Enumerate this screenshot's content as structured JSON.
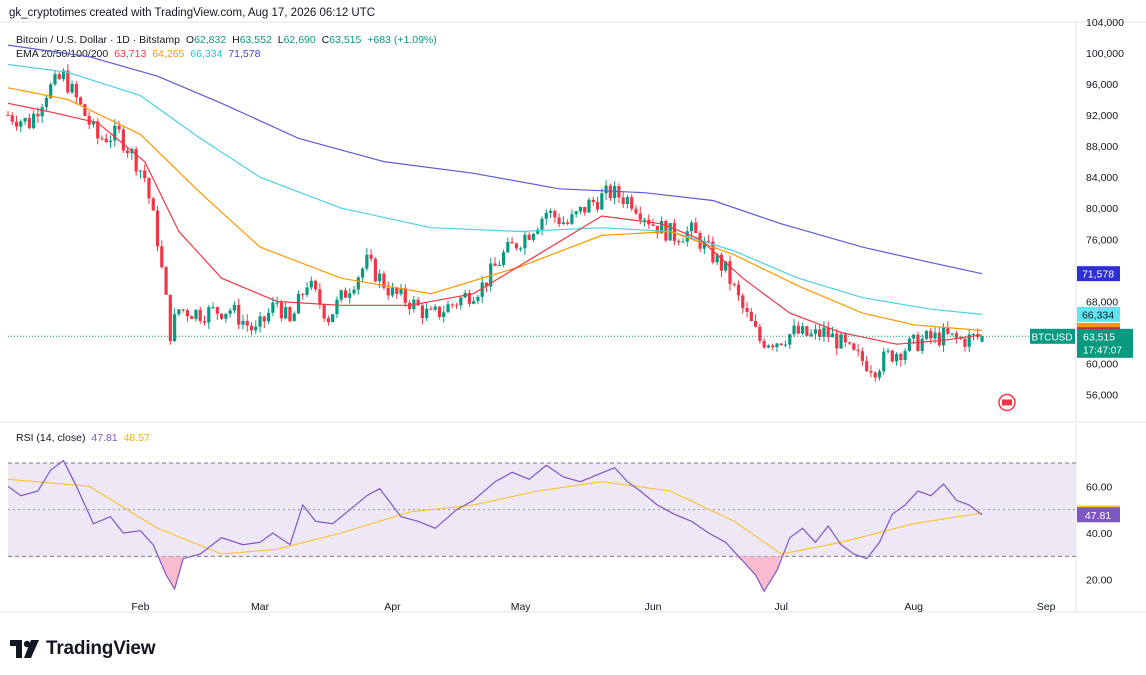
{
  "header": {
    "credit": "gk_cryptotimes created with TradingView.com, Aug 17, 2026 06:12 UTC"
  },
  "legend": {
    "symbol": "Bitcoin / U.S. Dollar · 1D · Bitstamp",
    "open_label": "O",
    "open": "62,832",
    "high_label": "H",
    "high": "63,552",
    "low_label": "L",
    "low": "62,690",
    "close_label": "C",
    "close": "63,515",
    "change": "+683 (+1.09%)",
    "ema_title": "EMA 20/50/100/200",
    "ema20": "63,713",
    "ema50": "64,265",
    "ema100": "66,334",
    "ema200": "71,578"
  },
  "rsi_legend": {
    "title": "RSI (14, close)",
    "rsi": "47.81",
    "ma": "48.57"
  },
  "price_tag": {
    "symbol": "BTCUSD",
    "price": "63,515",
    "countdown": "17:47:07"
  },
  "logo": {
    "text": "TradingView"
  },
  "colors": {
    "up": "#089981",
    "down": "#f23645",
    "ema20": "#f23645",
    "ema50": "#ff9800",
    "ema100": "#4dd0e1",
    "ema200": "#5b5bd6",
    "rsi": "#7e57c2",
    "rsi_ma": "#fbc02d",
    "rsi_band": "#ede7f6"
  },
  "chart_data": [
    {
      "type": "candlestick",
      "title": "Bitcoin / U.S. Dollar · 1D · Bitstamp",
      "ylim": [
        53000,
        105000
      ],
      "y_ticks": [
        "104,000",
        "100,000",
        "96,000",
        "92,000",
        "88,000",
        "84,000",
        "80,000",
        "76,000",
        "72,000",
        "68,000",
        "64,000",
        "60,000",
        "56,000"
      ],
      "x_ticks": [
        "Feb",
        "Mar",
        "Apr",
        "May",
        "Jun",
        "Jul",
        "Aug",
        "Sep"
      ],
      "date_range": [
        "2026-01-01",
        "2026-09-08"
      ],
      "last_candle": {
        "date": "2026-08-17",
        "open": 62832,
        "high": 63552,
        "low": 62690,
        "close": 63515
      },
      "close_path": [
        [
          "2026-01-01",
          92000
        ],
        [
          "2026-01-06",
          91000
        ],
        [
          "2026-01-10",
          95000
        ],
        [
          "2026-01-14",
          97000
        ],
        [
          "2026-01-19",
          92000
        ],
        [
          "2026-01-22",
          89000
        ],
        [
          "2026-01-27",
          89500
        ],
        [
          "2026-01-30",
          87000
        ],
        [
          "2026-02-02",
          84000
        ],
        [
          "2026-02-05",
          76000
        ],
        [
          "2026-02-08",
          64000
        ],
        [
          "2026-02-10",
          67000
        ],
        [
          "2026-02-15",
          66500
        ],
        [
          "2026-02-22",
          67000
        ],
        [
          "2026-02-28",
          64000
        ],
        [
          "2026-03-05",
          68000
        ],
        [
          "2026-03-08",
          65000
        ],
        [
          "2026-03-12",
          70500
        ],
        [
          "2026-03-17",
          66000
        ],
        [
          "2026-03-22",
          70000
        ],
        [
          "2026-03-26",
          73000
        ],
        [
          "2026-04-01",
          69000
        ],
        [
          "2026-04-05",
          68000
        ],
        [
          "2026-04-10",
          66000
        ],
        [
          "2026-04-16",
          68000
        ],
        [
          "2026-04-22",
          70000
        ],
        [
          "2026-04-27",
          74000
        ],
        [
          "2026-05-03",
          77000
        ],
        [
          "2026-05-07",
          79500
        ],
        [
          "2026-05-12",
          78000
        ],
        [
          "2026-05-17",
          80500
        ],
        [
          "2026-05-22",
          82000
        ],
        [
          "2026-05-27",
          81000
        ],
        [
          "2026-06-01",
          78000
        ],
        [
          "2026-06-06",
          76500
        ],
        [
          "2026-06-10",
          77000
        ],
        [
          "2026-06-14",
          74500
        ],
        [
          "2026-06-18",
          72000
        ],
        [
          "2026-06-22",
          67000
        ],
        [
          "2026-06-26",
          63000
        ],
        [
          "2026-06-30",
          63000
        ],
        [
          "2026-07-04",
          64000
        ],
        [
          "2026-07-08",
          63500
        ],
        [
          "2026-07-11",
          64000
        ],
        [
          "2026-07-14",
          63000
        ],
        [
          "2026-07-18",
          61000
        ],
        [
          "2026-07-23",
          59500
        ],
        [
          "2026-07-26",
          61000
        ],
        [
          "2026-07-30",
          62000
        ],
        [
          "2026-08-03",
          63000
        ],
        [
          "2026-08-08",
          63500
        ],
        [
          "2026-08-12",
          63000
        ],
        [
          "2026-08-17",
          63515
        ]
      ],
      "ema20_path": [
        [
          "2026-01-01",
          93500
        ],
        [
          "2026-01-10",
          92500
        ],
        [
          "2026-01-22",
          91000
        ],
        [
          "2026-02-02",
          86000
        ],
        [
          "2026-02-10",
          77000
        ],
        [
          "2026-02-20",
          71000
        ],
        [
          "2026-03-05",
          68000
        ],
        [
          "2026-03-20",
          67500
        ],
        [
          "2026-04-05",
          67500
        ],
        [
          "2026-04-20",
          69000
        ],
        [
          "2026-05-05",
          74000
        ],
        [
          "2026-05-20",
          79000
        ],
        [
          "2026-06-03",
          78000
        ],
        [
          "2026-06-12",
          76000
        ],
        [
          "2026-06-22",
          71000
        ],
        [
          "2026-07-03",
          66500
        ],
        [
          "2026-07-15",
          64000
        ],
        [
          "2026-07-28",
          62500
        ],
        [
          "2026-08-08",
          63000
        ],
        [
          "2026-08-17",
          63713
        ]
      ],
      "ema50_path": [
        [
          "2026-01-01",
          95500
        ],
        [
          "2026-01-15",
          94000
        ],
        [
          "2026-02-01",
          89500
        ],
        [
          "2026-02-15",
          82000
        ],
        [
          "2026-03-01",
          75000
        ],
        [
          "2026-03-20",
          71000
        ],
        [
          "2026-04-10",
          69000
        ],
        [
          "2026-05-01",
          72500
        ],
        [
          "2026-05-20",
          76500
        ],
        [
          "2026-06-05",
          77000
        ],
        [
          "2026-06-20",
          74000
        ],
        [
          "2026-07-05",
          70000
        ],
        [
          "2026-07-20",
          66500
        ],
        [
          "2026-08-01",
          65000
        ],
        [
          "2026-08-17",
          64265
        ]
      ],
      "ema100_path": [
        [
          "2026-01-01",
          98500
        ],
        [
          "2026-01-15",
          97500
        ],
        [
          "2026-02-01",
          94500
        ],
        [
          "2026-02-15",
          89000
        ],
        [
          "2026-03-01",
          84000
        ],
        [
          "2026-03-20",
          80000
        ],
        [
          "2026-04-10",
          77500
        ],
        [
          "2026-05-01",
          77000
        ],
        [
          "2026-05-20",
          77500
        ],
        [
          "2026-06-05",
          77000
        ],
        [
          "2026-06-20",
          74500
        ],
        [
          "2026-07-05",
          71000
        ],
        [
          "2026-07-20",
          68500
        ],
        [
          "2026-08-05",
          67000
        ],
        [
          "2026-08-17",
          66334
        ]
      ],
      "ema200_path": [
        [
          "2026-01-01",
          101000
        ],
        [
          "2026-01-20",
          99500
        ],
        [
          "2026-02-05",
          97000
        ],
        [
          "2026-02-20",
          93500
        ],
        [
          "2026-03-10",
          89000
        ],
        [
          "2026-03-30",
          86000
        ],
        [
          "2026-04-20",
          84500
        ],
        [
          "2026-05-10",
          82500
        ],
        [
          "2026-05-30",
          82000
        ],
        [
          "2026-06-15",
          81000
        ],
        [
          "2026-07-01",
          78000
        ],
        [
          "2026-07-20",
          75000
        ],
        [
          "2026-08-05",
          73000
        ],
        [
          "2026-08-17",
          71578
        ]
      ]
    },
    {
      "type": "line",
      "title": "RSI (14, close)",
      "ylim": [
        7,
        85
      ],
      "y_ticks": [
        "60.00",
        "40.00",
        "20.00"
      ],
      "bands": [
        70,
        50,
        30
      ],
      "rsi_path": [
        [
          "2026-01-01",
          60
        ],
        [
          "2026-01-04",
          56
        ],
        [
          "2026-01-08",
          58
        ],
        [
          "2026-01-11",
          67
        ],
        [
          "2026-01-14",
          71
        ],
        [
          "2026-01-17",
          60
        ],
        [
          "2026-01-21",
          44
        ],
        [
          "2026-01-25",
          47
        ],
        [
          "2026-01-28",
          40
        ],
        [
          "2026-02-01",
          41
        ],
        [
          "2026-02-04",
          35
        ],
        [
          "2026-02-07",
          22
        ],
        [
          "2026-02-09",
          16
        ],
        [
          "2026-02-11",
          29
        ],
        [
          "2026-02-15",
          31
        ],
        [
          "2026-02-20",
          38
        ],
        [
          "2026-02-25",
          35
        ],
        [
          "2026-03-01",
          36
        ],
        [
          "2026-03-04",
          40
        ],
        [
          "2026-03-08",
          35
        ],
        [
          "2026-03-11",
          52
        ],
        [
          "2026-03-14",
          45
        ],
        [
          "2026-03-18",
          44
        ],
        [
          "2026-03-22",
          50
        ],
        [
          "2026-03-26",
          56
        ],
        [
          "2026-03-29",
          59
        ],
        [
          "2026-04-03",
          47
        ],
        [
          "2026-04-07",
          45
        ],
        [
          "2026-04-11",
          42
        ],
        [
          "2026-04-16",
          50
        ],
        [
          "2026-04-20",
          54
        ],
        [
          "2026-04-25",
          62
        ],
        [
          "2026-04-29",
          66
        ],
        [
          "2026-05-03",
          63
        ],
        [
          "2026-05-07",
          69
        ],
        [
          "2026-05-11",
          64
        ],
        [
          "2026-05-15",
          62
        ],
        [
          "2026-05-19",
          65
        ],
        [
          "2026-05-23",
          68
        ],
        [
          "2026-05-26",
          62
        ],
        [
          "2026-05-29",
          58
        ],
        [
          "2026-06-02",
          52
        ],
        [
          "2026-06-06",
          48
        ],
        [
          "2026-06-10",
          45
        ],
        [
          "2026-06-14",
          40
        ],
        [
          "2026-06-18",
          36
        ],
        [
          "2026-06-22",
          28
        ],
        [
          "2026-06-25",
          22
        ],
        [
          "2026-06-27",
          15
        ],
        [
          "2026-06-30",
          24
        ],
        [
          "2026-07-03",
          38
        ],
        [
          "2026-07-06",
          42
        ],
        [
          "2026-07-09",
          36
        ],
        [
          "2026-07-12",
          43
        ],
        [
          "2026-07-15",
          35
        ],
        [
          "2026-07-18",
          31
        ],
        [
          "2026-07-21",
          29
        ],
        [
          "2026-07-24",
          36
        ],
        [
          "2026-07-27",
          48
        ],
        [
          "2026-07-30",
          52
        ],
        [
          "2026-08-02",
          58
        ],
        [
          "2026-08-05",
          56
        ],
        [
          "2026-08-08",
          61
        ],
        [
          "2026-08-11",
          54
        ],
        [
          "2026-08-14",
          52
        ],
        [
          "2026-08-17",
          47.81
        ]
      ],
      "rsi_ma_path": [
        [
          "2026-01-01",
          63
        ],
        [
          "2026-01-20",
          60
        ],
        [
          "2026-02-05",
          42
        ],
        [
          "2026-02-20",
          31
        ],
        [
          "2026-03-05",
          33
        ],
        [
          "2026-03-20",
          40
        ],
        [
          "2026-04-05",
          49
        ],
        [
          "2026-04-20",
          52
        ],
        [
          "2026-05-05",
          58
        ],
        [
          "2026-05-20",
          62
        ],
        [
          "2026-06-05",
          58
        ],
        [
          "2026-06-20",
          45
        ],
        [
          "2026-07-01",
          31
        ],
        [
          "2026-07-15",
          36
        ],
        [
          "2026-08-01",
          44
        ],
        [
          "2026-08-17",
          48.57
        ]
      ]
    }
  ]
}
